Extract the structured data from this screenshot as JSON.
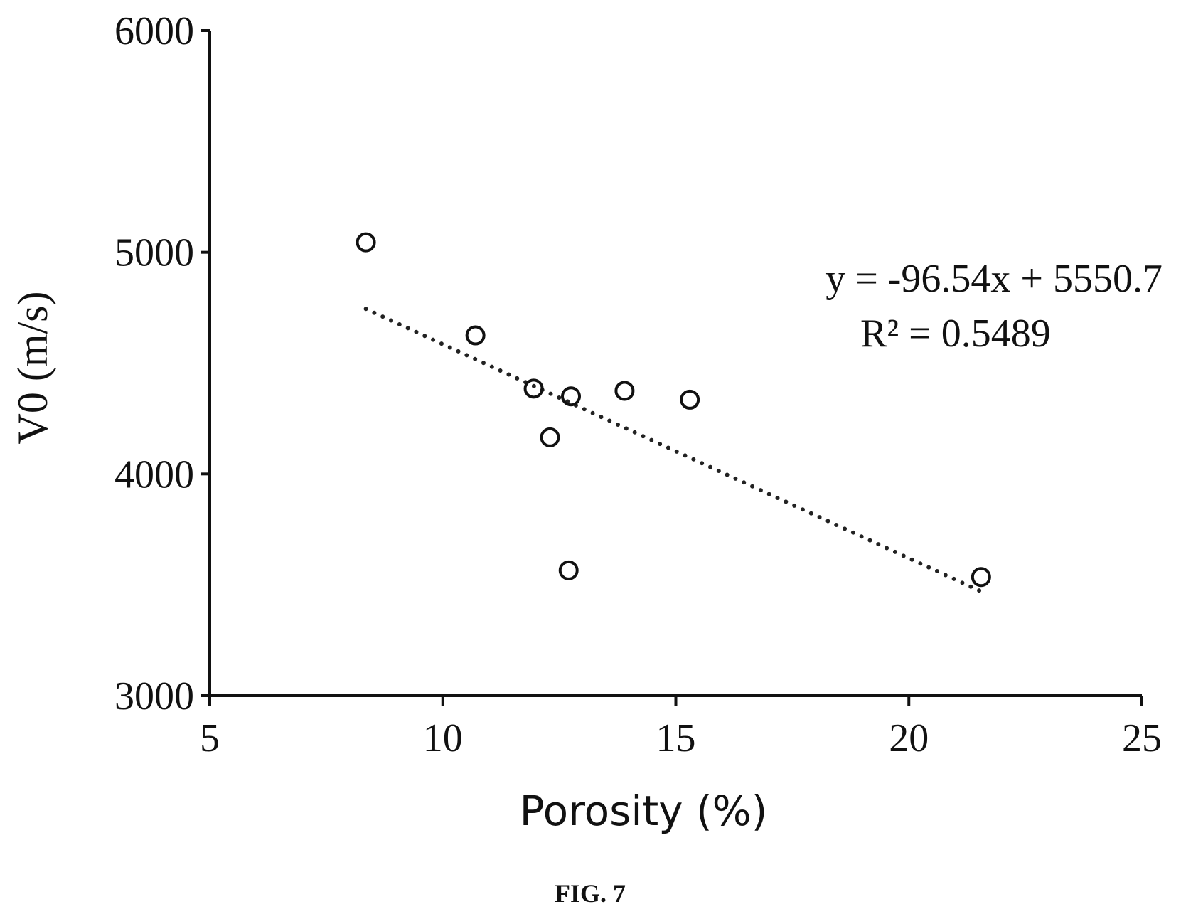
{
  "figure_label": "FIG. 7",
  "chart_data": {
    "type": "scatter",
    "xlabel": "Porosity (%)",
    "ylabel": "V0 (m/s)",
    "xlim": [
      5,
      25
    ],
    "ylim": [
      3000,
      6000
    ],
    "x_ticks": [
      5,
      10,
      15,
      20,
      25
    ],
    "y_ticks": [
      3000,
      4000,
      5000,
      6000
    ],
    "x_tick_labels": [
      "5",
      "10",
      "15",
      "20",
      "25"
    ],
    "y_tick_labels": [
      "3000",
      "4000",
      "5000",
      "6000"
    ],
    "grid": false,
    "marker": "open-circle",
    "series": [
      {
        "points": [
          {
            "x": 8.35,
            "y": 5045
          },
          {
            "x": 10.7,
            "y": 4625
          },
          {
            "x": 11.95,
            "y": 4385
          },
          {
            "x": 12.3,
            "y": 4165
          },
          {
            "x": 12.75,
            "y": 4350
          },
          {
            "x": 13.9,
            "y": 4375
          },
          {
            "x": 15.3,
            "y": 4335
          },
          {
            "x": 12.7,
            "y": 3565
          },
          {
            "x": 21.55,
            "y": 3535
          }
        ]
      }
    ],
    "trendline": {
      "style": "dotted",
      "slope": -96.54,
      "intercept": 5550.7,
      "x_range": [
        8.35,
        21.55
      ],
      "equation_text": "y = -96.54x + 5550.7",
      "r2_text": "R² = 0.5489"
    }
  }
}
